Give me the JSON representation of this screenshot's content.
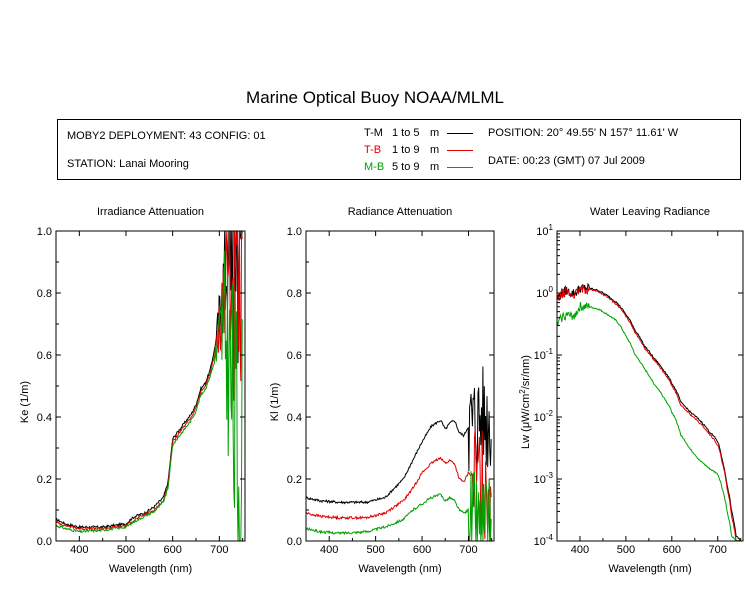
{
  "title": "Marine Optical Buoy NOAA/MLML",
  "info": {
    "deployment": "MOBY2 DEPLOYMENT: 43 CONFIG: 01",
    "station": "STATION: Lanai Mooring",
    "position": "POSITION: 20° 49.55' N   157° 11.61' W",
    "date": "DATE: 00:23 (GMT) 07 Jul 2009"
  },
  "legend": [
    {
      "code": "T-M",
      "range": "1 to 5",
      "unit": "m",
      "color": "#000000"
    },
    {
      "code": "T-B",
      "range": "1 to 9",
      "unit": "m",
      "color": "#e00000"
    },
    {
      "code": "M-B",
      "range": "5 to 9",
      "unit": "m",
      "color": "#00a000"
    }
  ],
  "chart_data": [
    {
      "type": "line",
      "title": "Irradiance Attenuation",
      "xlabel": "Wavelength (nm)",
      "ylabel": "Ke  (1/m)",
      "xlim": [
        350,
        755
      ],
      "ylim": [
        0,
        1
      ],
      "xticks": [
        400,
        500,
        600,
        700
      ],
      "yticks": [
        0,
        0.2,
        0.4,
        0.6,
        0.8,
        1.0
      ],
      "ytick_labels": [
        "0.0",
        "0.2",
        "0.4",
        "0.6",
        "0.8",
        "1.0"
      ],
      "series": [
        {
          "color": "#000000",
          "noise_from": 695,
          "x": [
            350,
            370,
            400,
            450,
            500,
            510,
            520,
            540,
            560,
            580,
            590,
            600,
            610,
            620,
            630,
            640,
            650,
            660,
            670,
            680,
            690,
            700,
            710,
            720,
            730,
            740,
            750
          ],
          "y": [
            0.07,
            0.055,
            0.045,
            0.045,
            0.055,
            0.07,
            0.08,
            0.09,
            0.11,
            0.14,
            0.19,
            0.33,
            0.35,
            0.37,
            0.39,
            0.41,
            0.44,
            0.49,
            0.51,
            0.55,
            0.62,
            0.72,
            0.85,
            1.0,
            1.0,
            1.0,
            1.0
          ]
        },
        {
          "color": "#e00000",
          "noise_from": 695,
          "x": [
            350,
            370,
            400,
            450,
            500,
            510,
            520,
            540,
            560,
            580,
            590,
            600,
            610,
            620,
            630,
            640,
            650,
            660,
            670,
            680,
            690,
            700,
            710,
            720,
            730,
            740,
            750
          ],
          "y": [
            0.06,
            0.05,
            0.04,
            0.04,
            0.05,
            0.06,
            0.07,
            0.085,
            0.1,
            0.13,
            0.18,
            0.32,
            0.34,
            0.36,
            0.38,
            0.4,
            0.43,
            0.48,
            0.5,
            0.54,
            0.6,
            0.7,
            0.82,
            0.9,
            0.8,
            0.75,
            0.7
          ]
        },
        {
          "color": "#00a000",
          "noise_from": 690,
          "x": [
            350,
            370,
            400,
            450,
            500,
            510,
            520,
            540,
            560,
            580,
            590,
            600,
            610,
            620,
            630,
            640,
            650,
            660,
            670,
            680,
            690,
            700,
            710,
            720,
            730,
            740,
            750
          ],
          "y": [
            0.05,
            0.04,
            0.03,
            0.035,
            0.045,
            0.055,
            0.065,
            0.08,
            0.095,
            0.125,
            0.17,
            0.31,
            0.33,
            0.35,
            0.37,
            0.39,
            0.42,
            0.47,
            0.49,
            0.53,
            0.58,
            0.65,
            0.7,
            0.6,
            0.4,
            0.3,
            0.2
          ]
        }
      ]
    },
    {
      "type": "line",
      "title": "Radiance Attenuation",
      "xlabel": "Wavelength (nm)",
      "ylabel": "Kl  (1/m)",
      "xlim": [
        350,
        755
      ],
      "ylim": [
        0,
        1
      ],
      "xticks": [
        400,
        500,
        600,
        700
      ],
      "yticks": [
        0,
        0.2,
        0.4,
        0.6,
        0.8,
        1.0
      ],
      "ytick_labels": [
        "0.0",
        "0.2",
        "0.4",
        "0.6",
        "0.8",
        "1.0"
      ],
      "series": [
        {
          "color": "#000000",
          "noise_from": 700,
          "x": [
            350,
            380,
            420,
            480,
            520,
            560,
            580,
            600,
            620,
            640,
            650,
            660,
            670,
            680,
            690,
            700,
            720,
            740,
            750
          ],
          "y": [
            0.14,
            0.13,
            0.125,
            0.125,
            0.14,
            0.2,
            0.26,
            0.32,
            0.37,
            0.39,
            0.36,
            0.38,
            0.39,
            0.35,
            0.34,
            0.37,
            0.4,
            0.4,
            0.4
          ]
        },
        {
          "color": "#e00000",
          "noise_from": 710,
          "x": [
            350,
            380,
            420,
            480,
            520,
            560,
            580,
            600,
            620,
            640,
            650,
            660,
            670,
            680,
            690,
            700,
            720,
            740,
            750
          ],
          "y": [
            0.09,
            0.08,
            0.075,
            0.075,
            0.09,
            0.13,
            0.17,
            0.22,
            0.25,
            0.27,
            0.25,
            0.26,
            0.25,
            0.2,
            0.19,
            0.22,
            0.2,
            0.18,
            0.15
          ]
        },
        {
          "color": "#00a000",
          "noise_from": 700,
          "x": [
            350,
            380,
            420,
            480,
            520,
            560,
            580,
            600,
            620,
            640,
            650,
            660,
            670,
            680,
            690,
            700,
            720,
            740,
            750
          ],
          "y": [
            0.04,
            0.03,
            0.025,
            0.03,
            0.045,
            0.07,
            0.1,
            0.12,
            0.14,
            0.15,
            0.13,
            0.14,
            0.13,
            0.1,
            0.09,
            0.1,
            0.06,
            0.04,
            0.02
          ]
        }
      ]
    },
    {
      "type": "line",
      "title": "Water Leaving Radiance",
      "xlabel": "Wavelength (nm)",
      "ylabel": "Lw  (μW/cm²/sr/nm)",
      "yscale": "log",
      "xlim": [
        350,
        755
      ],
      "ylim": [
        0.0001,
        10
      ],
      "xticks": [
        400,
        500,
        600,
        700
      ],
      "yticks": [
        0.0001,
        0.001,
        0.01,
        0.1,
        1,
        10
      ],
      "ytick_labels": [
        [
          "10",
          "-4"
        ],
        [
          "10",
          "-3"
        ],
        [
          "10",
          "-2"
        ],
        [
          "10",
          "-1"
        ],
        [
          "10",
          "0"
        ],
        [
          "10",
          "1"
        ]
      ],
      "series": [
        {
          "color": "#000000",
          "x": [
            350,
            360,
            370,
            380,
            390,
            400,
            420,
            440,
            460,
            480,
            500,
            520,
            540,
            560,
            580,
            600,
            620,
            640,
            660,
            680,
            700,
            710,
            720,
            730,
            740,
            750
          ],
          "y": [
            0.8,
            1.0,
            1.1,
            1.0,
            1.0,
            1.2,
            1.2,
            1.1,
            0.9,
            0.7,
            0.45,
            0.25,
            0.14,
            0.09,
            0.06,
            0.035,
            0.017,
            0.012,
            0.009,
            0.006,
            0.004,
            0.002,
            0.0008,
            0.0003,
            0.00012,
            0.0001
          ]
        },
        {
          "color": "#e00000",
          "x": [
            350,
            360,
            370,
            380,
            390,
            400,
            420,
            440,
            460,
            480,
            500,
            520,
            540,
            560,
            580,
            600,
            620,
            640,
            660,
            680,
            700,
            710,
            720,
            730,
            740,
            750
          ],
          "y": [
            0.75,
            0.95,
            1.05,
            0.95,
            0.95,
            1.15,
            1.15,
            1.05,
            0.85,
            0.65,
            0.42,
            0.23,
            0.13,
            0.085,
            0.055,
            0.032,
            0.015,
            0.011,
            0.008,
            0.0055,
            0.0035,
            0.0018,
            0.0007,
            0.00025,
            0.0001,
            0.0001
          ]
        },
        {
          "color": "#00a000",
          "x": [
            350,
            360,
            370,
            380,
            390,
            400,
            420,
            440,
            460,
            480,
            500,
            520,
            540,
            560,
            580,
            600,
            620,
            640,
            660,
            680,
            700,
            710,
            720,
            730,
            740,
            750
          ],
          "y": [
            0.3,
            0.4,
            0.45,
            0.42,
            0.45,
            0.6,
            0.6,
            0.55,
            0.45,
            0.35,
            0.2,
            0.1,
            0.06,
            0.035,
            0.022,
            0.012,
            0.005,
            0.003,
            0.002,
            0.0015,
            0.0012,
            0.0007,
            0.0003,
            0.00012,
            0.0001,
            0.0001
          ]
        }
      ]
    }
  ]
}
